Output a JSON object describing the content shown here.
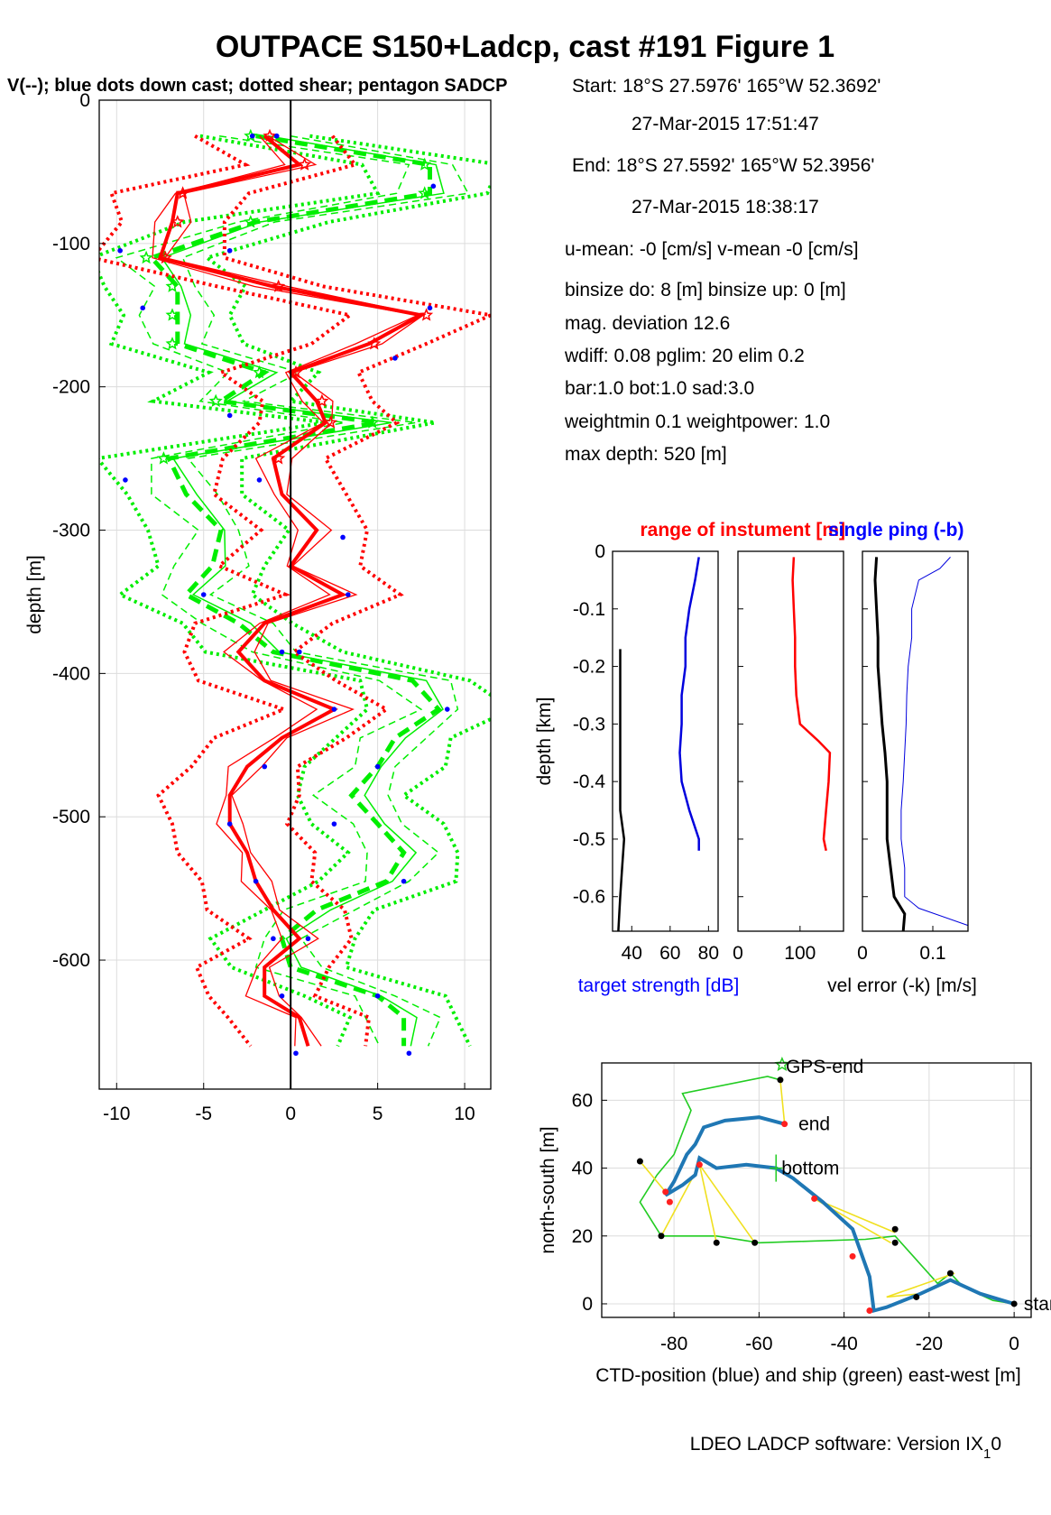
{
  "figure": {
    "title": "OUTPACE S150+Ladcp, cast #191  Figure 1",
    "subtitle": "V(--); blue dots down cast; dotted shear; pentagon SADCP",
    "footer": "LDEO LADCP software: Version IX",
    "footer_sub": "1",
    "footer_tail": "0"
  },
  "info": {
    "lines": [
      "Start:  18°S 27.5976'      165°W 52.3692'",
      "27-Mar-2015 17:51:47",
      "End:   18°S 27.5592'      165°W 52.3956'",
      "27-Mar-2015 18:38:17",
      "u-mean:  -0 [cm/s]    v-mean  -0 [cm/s]",
      "binsize do: 8 [m]  binsize up:  0 [m]",
      "mag. deviation 12.6",
      "wdiff: 0.08  pglim: 20  elim 0.2",
      "  bar:1.0 bot:1.0 sad:3.0",
      "weightmin 0.1  weightpower: 1.0",
      "max depth: 520 [m]"
    ]
  },
  "chart_data": [
    {
      "id": "velocity-profile",
      "type": "line",
      "ylabel": "depth [m]",
      "xlim": [
        -11,
        11.5
      ],
      "ylim": [
        -690,
        0
      ],
      "xticks": [
        -10,
        -5,
        0,
        5,
        10
      ],
      "yticks": [
        0,
        -100,
        -200,
        -300,
        -400,
        -500,
        -600
      ],
      "grid": true,
      "colors": {
        "u": "#ff0000",
        "v": "#00ee00",
        "dots": "#0000ff",
        "zero": "#000000"
      },
      "depth": [
        -25,
        -45,
        -65,
        -85,
        -110,
        -130,
        -150,
        -170,
        -190,
        -210,
        -225,
        -250,
        -275,
        -300,
        -325,
        -345,
        -365,
        -385,
        -405,
        -425,
        -445,
        -465,
        -485,
        -505,
        -525,
        -545,
        -565,
        -585,
        -605,
        -625,
        -640,
        -660
      ],
      "u_mean": [
        -1.5,
        0.5,
        -6.5,
        -6.8,
        -7.5,
        -1,
        7.5,
        4.5,
        0,
        1.5,
        2,
        -1,
        -0.5,
        1.5,
        0,
        3,
        -1.5,
        -3,
        -1.5,
        2.5,
        -0.5,
        -2.5,
        -3.5,
        -3.5,
        -2.5,
        -2,
        -1,
        0.5,
        -1.5,
        -1.5,
        0.5,
        1
      ],
      "u_range": [
        2.5,
        3,
        1.5,
        1.5,
        1.5,
        2,
        1.5,
        2,
        2,
        2.5,
        2.5,
        2,
        2,
        2,
        2,
        2,
        1.5,
        2,
        2.5,
        2,
        2,
        1.5,
        1.5,
        1.5,
        1.5,
        1.5,
        1.5,
        1.5,
        1.5,
        1.5,
        1.5,
        1.5
      ],
      "v_mean": [
        -2,
        8,
        8,
        -2,
        -8,
        -6.5,
        -6.5,
        -6.5,
        -1.5,
        -4,
        5,
        -7,
        -6,
        -4,
        -4.5,
        -6,
        -3,
        -1,
        7,
        8.5,
        6,
        5,
        3.5,
        5,
        6.5,
        5.5,
        1.5,
        -0.5,
        0,
        5,
        6.5,
        6.5
      ],
      "v_range": [
        3,
        3,
        3,
        3,
        3,
        2.5,
        2.5,
        2.5,
        2.5,
        2.5,
        3,
        3,
        3,
        3,
        3,
        3,
        3,
        3,
        3,
        3,
        3,
        3,
        3,
        3,
        3,
        3,
        3,
        3,
        3,
        3,
        3,
        3
      ],
      "dots": [
        [
          -2.2,
          -25
        ],
        [
          -0.8,
          -25
        ],
        [
          8.2,
          -60
        ],
        [
          -9.8,
          -105
        ],
        [
          -3.5,
          -105
        ],
        [
          -8.5,
          -145
        ],
        [
          8,
          -145
        ],
        [
          6,
          -180
        ],
        [
          -3.5,
          -220
        ],
        [
          -1.8,
          -265
        ],
        [
          -9.5,
          -265
        ],
        [
          3,
          -305
        ],
        [
          -5,
          -345
        ],
        [
          3.3,
          -345
        ],
        [
          -0.5,
          -385
        ],
        [
          0.5,
          -385
        ],
        [
          9,
          -425
        ],
        [
          2.5,
          -425
        ],
        [
          -1.5,
          -465
        ],
        [
          5,
          -465
        ],
        [
          -3.5,
          -505
        ],
        [
          2.5,
          -505
        ],
        [
          -2,
          -545
        ],
        [
          6.5,
          -545
        ],
        [
          -1,
          -585
        ],
        [
          1,
          -585
        ],
        [
          -0.5,
          -625
        ],
        [
          5,
          -625
        ],
        [
          0.3,
          -665
        ],
        [
          6.8,
          -665
        ]
      ]
    },
    {
      "id": "target-strength",
      "type": "line",
      "ylabel": "depth [km]",
      "xlim": [
        30,
        85
      ],
      "ylim": [
        -0.66,
        0
      ],
      "xticks": [
        40,
        60,
        80
      ],
      "yticks": [
        0,
        -0.1,
        -0.2,
        -0.3,
        -0.4,
        -0.5,
        -0.6
      ],
      "series": [
        {
          "color": "#0000dd",
          "points": [
            [
              75,
              -0.01
            ],
            [
              73,
              -0.05
            ],
            [
              70,
              -0.1
            ],
            [
              68,
              -0.15
            ],
            [
              68,
              -0.2
            ],
            [
              66,
              -0.25
            ],
            [
              66,
              -0.3
            ],
            [
              65,
              -0.35
            ],
            [
              66,
              -0.4
            ],
            [
              70,
              -0.45
            ],
            [
              75,
              -0.5
            ],
            [
              75,
              -0.52
            ]
          ]
        },
        {
          "color": "#000000",
          "points": [
            [
              34,
              -0.17
            ],
            [
              34,
              -0.3
            ],
            [
              34,
              -0.45
            ],
            [
              36,
              -0.5
            ],
            [
              35,
              -0.55
            ],
            [
              34,
              -0.6
            ],
            [
              33,
              -0.66
            ]
          ]
        }
      ]
    },
    {
      "id": "range-of-instruments",
      "type": "line",
      "xlim": [
        0,
        170
      ],
      "ylim": [
        -0.66,
        0
      ],
      "xticks": [
        0,
        100
      ],
      "series": [
        {
          "color": "#ff0000",
          "points": [
            [
              90,
              -0.01
            ],
            [
              88,
              -0.05
            ],
            [
              90,
              -0.1
            ],
            [
              92,
              -0.15
            ],
            [
              92,
              -0.2
            ],
            [
              94,
              -0.25
            ],
            [
              100,
              -0.3
            ],
            [
              130,
              -0.33
            ],
            [
              148,
              -0.35
            ],
            [
              146,
              -0.4
            ],
            [
              142,
              -0.45
            ],
            [
              138,
              -0.5
            ],
            [
              142,
              -0.52
            ]
          ]
        }
      ]
    },
    {
      "id": "velocity-error",
      "type": "line",
      "xlim": [
        0,
        0.15
      ],
      "ylim": [
        -0.66,
        0
      ],
      "xticks": [
        0,
        0.1
      ],
      "series": [
        {
          "color": "#000000",
          "width": 3,
          "points": [
            [
              0.02,
              -0.01
            ],
            [
              0.018,
              -0.05
            ],
            [
              0.02,
              -0.1
            ],
            [
              0.022,
              -0.15
            ],
            [
              0.022,
              -0.2
            ],
            [
              0.025,
              -0.25
            ],
            [
              0.028,
              -0.3
            ],
            [
              0.032,
              -0.35
            ],
            [
              0.035,
              -0.4
            ],
            [
              0.035,
              -0.45
            ],
            [
              0.035,
              -0.5
            ],
            [
              0.04,
              -0.55
            ],
            [
              0.045,
              -0.6
            ],
            [
              0.06,
              -0.63
            ],
            [
              0.058,
              -0.66
            ]
          ]
        },
        {
          "color": "#0000dd",
          "width": 1,
          "points": [
            [
              0.125,
              -0.01
            ],
            [
              0.11,
              -0.03
            ],
            [
              0.08,
              -0.05
            ],
            [
              0.07,
              -0.1
            ],
            [
              0.07,
              -0.15
            ],
            [
              0.065,
              -0.2
            ],
            [
              0.063,
              -0.25
            ],
            [
              0.062,
              -0.3
            ],
            [
              0.06,
              -0.35
            ],
            [
              0.058,
              -0.4
            ],
            [
              0.055,
              -0.45
            ],
            [
              0.055,
              -0.5
            ],
            [
              0.06,
              -0.55
            ],
            [
              0.06,
              -0.6
            ],
            [
              0.08,
              -0.62
            ],
            [
              0.15,
              -0.65
            ]
          ]
        }
      ]
    },
    {
      "id": "ctd-ship-track",
      "type": "line",
      "xlabel": "CTD-position (blue) and ship (green) east-west [m]",
      "ylabel": "north-south [m]",
      "xlim": [
        -97,
        4
      ],
      "ylim": [
        -4,
        71
      ],
      "xticks": [
        -80,
        -60,
        -40,
        -20,
        0
      ],
      "yticks": [
        0,
        20,
        40,
        60
      ],
      "ship": [
        [
          0,
          0
        ],
        [
          -5,
          1
        ],
        [
          -12,
          5
        ],
        [
          -15,
          9
        ],
        [
          -18,
          6
        ],
        [
          -28,
          20
        ],
        [
          -35,
          19
        ],
        [
          -60,
          18
        ],
        [
          -70,
          20
        ],
        [
          -83,
          20
        ],
        [
          -88,
          30
        ],
        [
          -84,
          38
        ],
        [
          -80,
          44
        ],
        [
          -76,
          57
        ],
        [
          -78,
          62
        ],
        [
          -58,
          67
        ],
        [
          -55,
          66
        ]
      ],
      "ctd": [
        [
          0,
          0
        ],
        [
          -8,
          3
        ],
        [
          -15,
          7
        ],
        [
          -22,
          3
        ],
        [
          -30,
          -1
        ],
        [
          -33,
          -2
        ],
        [
          -34,
          8
        ],
        [
          -38,
          22
        ],
        [
          -45,
          30
        ],
        [
          -52,
          37
        ],
        [
          -56,
          40
        ],
        [
          -63,
          41
        ],
        [
          -70,
          40
        ],
        [
          -74,
          43
        ],
        [
          -75,
          38
        ],
        [
          -78,
          35
        ],
        [
          -82,
          32
        ],
        [
          -80,
          36
        ],
        [
          -77,
          44
        ],
        [
          -75,
          47
        ],
        [
          -73,
          52
        ],
        [
          -68,
          54
        ],
        [
          -60,
          55
        ],
        [
          -54,
          53
        ]
      ],
      "connectors": [
        [
          [
            -55,
            66
          ],
          [
            -54,
            53
          ]
        ],
        [
          [
            -74,
            41
          ],
          [
            -83,
            20
          ]
        ],
        [
          [
            -74,
            41
          ],
          [
            -70,
            18
          ]
        ],
        [
          [
            -74,
            41
          ],
          [
            -61,
            18
          ]
        ],
        [
          [
            -47,
            31
          ],
          [
            -28,
            21
          ]
        ],
        [
          [
            -47,
            31
          ],
          [
            -29,
            18
          ]
        ],
        [
          [
            -30,
            2
          ],
          [
            -14,
            9
          ]
        ],
        [
          [
            -30,
            2
          ],
          [
            -22,
            3
          ]
        ],
        [
          [
            -88,
            42
          ],
          [
            -82,
            33
          ]
        ]
      ],
      "black_dots": [
        [
          -55,
          66
        ],
        [
          -88,
          42
        ],
        [
          -83,
          20
        ],
        [
          -70,
          18
        ],
        [
          -61,
          18
        ],
        [
          -28,
          22
        ],
        [
          -28,
          18
        ],
        [
          -15,
          9
        ],
        [
          -23,
          2
        ],
        [
          0,
          0
        ]
      ],
      "red_dots": [
        [
          -54,
          53
        ],
        [
          -82,
          33
        ],
        [
          -81,
          30
        ],
        [
          -74,
          41
        ],
        [
          -47,
          31
        ],
        [
          -38,
          14
        ],
        [
          -34,
          -2
        ]
      ],
      "labels": [
        {
          "text": "GPS-end",
          "x": -55,
          "y": 70
        },
        {
          "text": "end",
          "x": -52,
          "y": 53
        },
        {
          "text": "bottom",
          "x": -56,
          "y": 40
        },
        {
          "text": "start",
          "x": 1,
          "y": 0
        }
      ]
    }
  ],
  "inset": {
    "title_red": "range of instument [m]",
    "title_blue": "single ping (-b)",
    "xlabel_left": "target strength [dB]",
    "xlabel_right": "vel error (-k) [m/s]"
  }
}
